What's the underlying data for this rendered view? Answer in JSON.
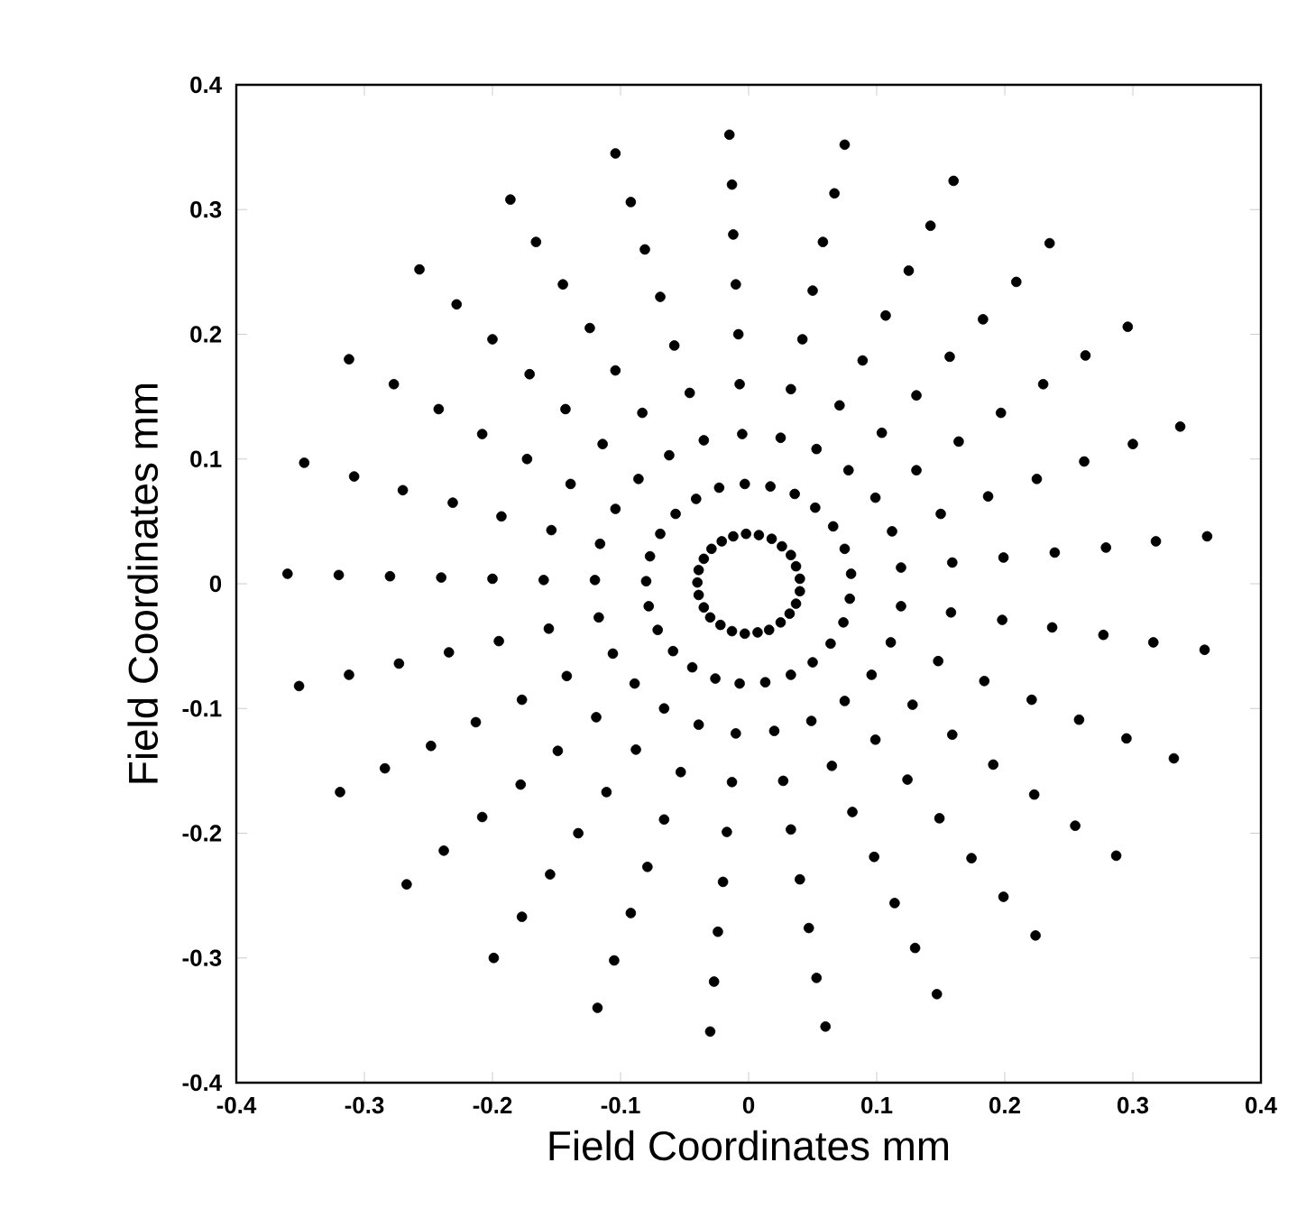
{
  "chart_data": {
    "type": "scatter",
    "xlabel": "Field Coordinates mm",
    "ylabel": "Field Coordinates mm",
    "xlim": [
      -0.4,
      0.4
    ],
    "ylim": [
      -0.4,
      0.4
    ],
    "xticks": [
      -0.4,
      -0.3,
      -0.2,
      -0.1,
      0,
      0.1,
      0.2,
      0.3,
      0.4
    ],
    "yticks": [
      -0.4,
      -0.3,
      -0.2,
      -0.1,
      0,
      0.1,
      0.2,
      0.3,
      0.4
    ],
    "marker": "circle",
    "series": [
      {
        "color": "#000000",
        "x": [
          -0.002,
          -0.003,
          -0.005,
          -0.007,
          -0.008,
          -0.01,
          -0.012,
          -0.013,
          -0.015
        ],
        "values": [
          0.04,
          0.08,
          0.12,
          0.16,
          0.2,
          0.24,
          0.28,
          0.32,
          0.36
        ]
      },
      {
        "color": "#000000",
        "x": [
          0.008,
          0.017,
          0.025,
          0.033,
          0.042,
          0.05,
          0.058,
          0.067,
          0.075
        ],
        "values": [
          0.039,
          0.078,
          0.117,
          0.156,
          0.196,
          0.235,
          0.274,
          0.313,
          0.352
        ]
      },
      {
        "color": "#000000",
        "x": [
          0.018,
          0.036,
          0.053,
          0.071,
          0.089,
          0.107,
          0.125,
          0.142,
          0.16
        ],
        "values": [
          0.036,
          0.072,
          0.108,
          0.143,
          0.179,
          0.215,
          0.251,
          0.287,
          0.323
        ]
      },
      {
        "color": "#000000",
        "x": [
          0.026,
          0.052,
          0.078,
          0.104,
          0.131,
          0.157,
          0.183,
          0.209,
          0.235
        ],
        "values": [
          0.03,
          0.061,
          0.091,
          0.121,
          0.151,
          0.182,
          0.212,
          0.242,
          0.273
        ]
      },
      {
        "color": "#000000",
        "x": [
          0.033,
          0.066,
          0.099,
          0.131,
          0.164,
          0.197,
          0.23,
          0.263,
          0.296
        ],
        "values": [
          0.023,
          0.046,
          0.069,
          0.091,
          0.114,
          0.137,
          0.16,
          0.183,
          0.206
        ]
      },
      {
        "color": "#000000",
        "x": [
          0.037,
          0.075,
          0.112,
          0.15,
          0.187,
          0.225,
          0.262,
          0.3,
          0.337
        ],
        "values": [
          0.014,
          0.028,
          0.042,
          0.056,
          0.07,
          0.084,
          0.098,
          0.112,
          0.126
        ]
      },
      {
        "color": "#000000",
        "x": [
          0.04,
          0.08,
          0.119,
          0.159,
          0.199,
          0.239,
          0.279,
          0.318,
          0.358
        ],
        "values": [
          0.004,
          0.008,
          0.013,
          0.017,
          0.021,
          0.025,
          0.029,
          0.034,
          0.038
        ]
      },
      {
        "color": "#000000",
        "x": [
          0.04,
          0.079,
          0.119,
          0.158,
          0.198,
          0.237,
          0.277,
          0.316,
          0.356
        ],
        "values": [
          -0.006,
          -0.012,
          -0.018,
          -0.023,
          -0.029,
          -0.035,
          -0.041,
          -0.047,
          -0.053
        ]
      },
      {
        "color": "#000000",
        "x": [
          0.037,
          0.074,
          0.111,
          0.148,
          0.184,
          0.221,
          0.258,
          0.295,
          0.332
        ],
        "values": [
          -0.016,
          -0.031,
          -0.047,
          -0.062,
          -0.078,
          -0.093,
          -0.109,
          -0.124,
          -0.14
        ]
      },
      {
        "color": "#000000",
        "x": [
          0.032,
          0.064,
          0.096,
          0.128,
          0.159,
          0.191,
          0.223,
          0.255,
          0.287
        ],
        "values": [
          -0.024,
          -0.048,
          -0.073,
          -0.097,
          -0.121,
          -0.145,
          -0.169,
          -0.194,
          -0.218
        ]
      },
      {
        "color": "#000000",
        "x": [
          0.025,
          0.05,
          0.075,
          0.099,
          0.124,
          0.149,
          0.174,
          0.199,
          0.224
        ],
        "values": [
          -0.031,
          -0.063,
          -0.094,
          -0.125,
          -0.157,
          -0.188,
          -0.22,
          -0.251,
          -0.282
        ]
      },
      {
        "color": "#000000",
        "x": [
          0.016,
          0.033,
          0.049,
          0.065,
          0.081,
          0.098,
          0.114,
          0.13,
          0.147
        ],
        "values": [
          -0.037,
          -0.073,
          -0.11,
          -0.146,
          -0.183,
          -0.219,
          -0.256,
          -0.292,
          -0.329
        ]
      },
      {
        "color": "#000000",
        "x": [
          0.007,
          0.013,
          0.02,
          0.027,
          0.033,
          0.04,
          0.047,
          0.053,
          0.06
        ],
        "values": [
          -0.039,
          -0.079,
          -0.118,
          -0.158,
          -0.197,
          -0.237,
          -0.276,
          -0.316,
          -0.355
        ]
      },
      {
        "color": "#000000",
        "x": [
          -0.003,
          -0.007,
          -0.01,
          -0.013,
          -0.017,
          -0.02,
          -0.024,
          -0.027,
          -0.03
        ],
        "values": [
          -0.04,
          -0.08,
          -0.12,
          -0.159,
          -0.199,
          -0.239,
          -0.279,
          -0.319,
          -0.359
        ]
      },
      {
        "color": "#000000",
        "x": [
          -0.013,
          -0.026,
          -0.039,
          -0.053,
          -0.066,
          -0.079,
          -0.092,
          -0.105,
          -0.118
        ],
        "values": [
          -0.038,
          -0.076,
          -0.113,
          -0.151,
          -0.189,
          -0.227,
          -0.264,
          -0.302,
          -0.34
        ]
      },
      {
        "color": "#000000",
        "x": [
          -0.022,
          -0.044,
          -0.066,
          -0.088,
          -0.111,
          -0.133,
          -0.155,
          -0.177,
          -0.199
        ],
        "values": [
          -0.033,
          -0.067,
          -0.1,
          -0.133,
          -0.167,
          -0.2,
          -0.233,
          -0.267,
          -0.3
        ]
      },
      {
        "color": "#000000",
        "x": [
          -0.03,
          -0.059,
          -0.089,
          -0.119,
          -0.149,
          -0.178,
          -0.208,
          -0.238,
          -0.267
        ],
        "values": [
          -0.027,
          -0.054,
          -0.08,
          -0.107,
          -0.134,
          -0.161,
          -0.187,
          -0.214,
          -0.241
        ]
      },
      {
        "color": "#000000",
        "x": [
          -0.035,
          -0.071,
          -0.106,
          -0.142,
          -0.177,
          -0.213,
          -0.248,
          -0.284,
          -0.319
        ],
        "values": [
          -0.019,
          -0.037,
          -0.056,
          -0.074,
          -0.093,
          -0.111,
          -0.13,
          -0.148,
          -0.167
        ]
      },
      {
        "color": "#000000",
        "x": [
          -0.039,
          -0.078,
          -0.117,
          -0.156,
          -0.195,
          -0.234,
          -0.273,
          -0.312,
          -0.351
        ],
        "values": [
          -0.009,
          -0.018,
          -0.027,
          -0.036,
          -0.046,
          -0.055,
          -0.064,
          -0.073,
          -0.082
        ]
      },
      {
        "color": "#000000",
        "x": [
          -0.04,
          -0.08,
          -0.12,
          -0.16,
          -0.2,
          -0.24,
          -0.28,
          -0.32,
          -0.36
        ],
        "values": [
          0.001,
          0.002,
          0.003,
          0.003,
          0.004,
          0.005,
          0.006,
          0.007,
          0.008
        ]
      },
      {
        "color": "#000000",
        "x": [
          -0.039,
          -0.077,
          -0.116,
          -0.154,
          -0.193,
          -0.231,
          -0.27,
          -0.308,
          -0.347
        ],
        "values": [
          0.011,
          0.022,
          0.032,
          0.043,
          0.054,
          0.065,
          0.075,
          0.086,
          0.097
        ]
      },
      {
        "color": "#000000",
        "x": [
          -0.035,
          -0.069,
          -0.104,
          -0.139,
          -0.173,
          -0.208,
          -0.242,
          -0.277,
          -0.312
        ],
        "values": [
          0.02,
          0.04,
          0.06,
          0.08,
          0.1,
          0.12,
          0.14,
          0.16,
          0.18
        ]
      },
      {
        "color": "#000000",
        "x": [
          -0.029,
          -0.057,
          -0.086,
          -0.114,
          -0.143,
          -0.171,
          -0.2,
          -0.228,
          -0.257
        ],
        "values": [
          0.028,
          0.056,
          0.084,
          0.112,
          0.14,
          0.168,
          0.196,
          0.224,
          0.252
        ]
      },
      {
        "color": "#000000",
        "x": [
          -0.021,
          -0.041,
          -0.062,
          -0.083,
          -0.104,
          -0.124,
          -0.145,
          -0.166,
          -0.186
        ],
        "values": [
          0.034,
          0.068,
          0.103,
          0.137,
          0.171,
          0.205,
          0.24,
          0.274,
          0.308
        ]
      },
      {
        "color": "#000000",
        "x": [
          -0.012,
          -0.023,
          -0.035,
          -0.046,
          -0.058,
          -0.069,
          -0.081,
          -0.092,
          -0.104
        ],
        "values": [
          0.038,
          0.077,
          0.115,
          0.153,
          0.191,
          0.23,
          0.268,
          0.306,
          0.345
        ]
      }
    ]
  }
}
